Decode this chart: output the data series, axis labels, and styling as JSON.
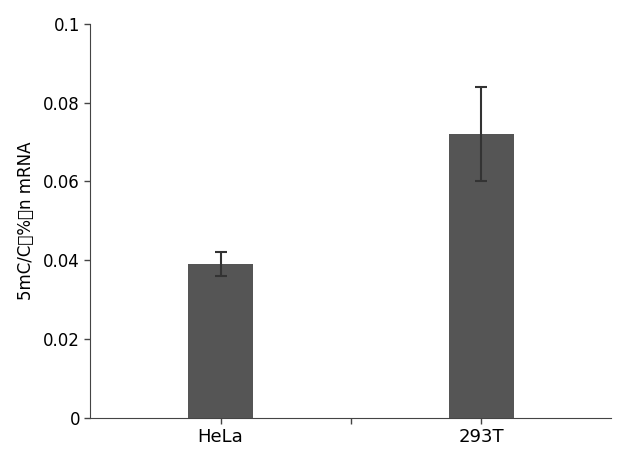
{
  "categories": [
    "HeLa",
    "293T"
  ],
  "values": [
    0.039,
    0.072
  ],
  "errors": [
    0.003,
    0.012
  ],
  "bar_color": "#555555",
  "bar_width": 0.5,
  "ylabel": "5mC/C（%）n mRNA",
  "ylim": [
    0,
    0.1
  ],
  "yticks": [
    0,
    0.02,
    0.04,
    0.06,
    0.08,
    0.1
  ],
  "ytick_labels": [
    "0",
    "0.02",
    "0.04",
    "0.06",
    "0.08",
    "0.1"
  ],
  "background_color": "#ffffff",
  "figure_color": "#ffffff",
  "ylabel_fontsize": 12,
  "tick_fontsize": 12,
  "xtick_fontsize": 13,
  "error_capsize": 4,
  "error_color": "#333333",
  "error_linewidth": 1.5,
  "bar_positions": [
    1,
    3
  ],
  "xlim": [
    0,
    4
  ],
  "xtick_positions": [
    1,
    3
  ]
}
